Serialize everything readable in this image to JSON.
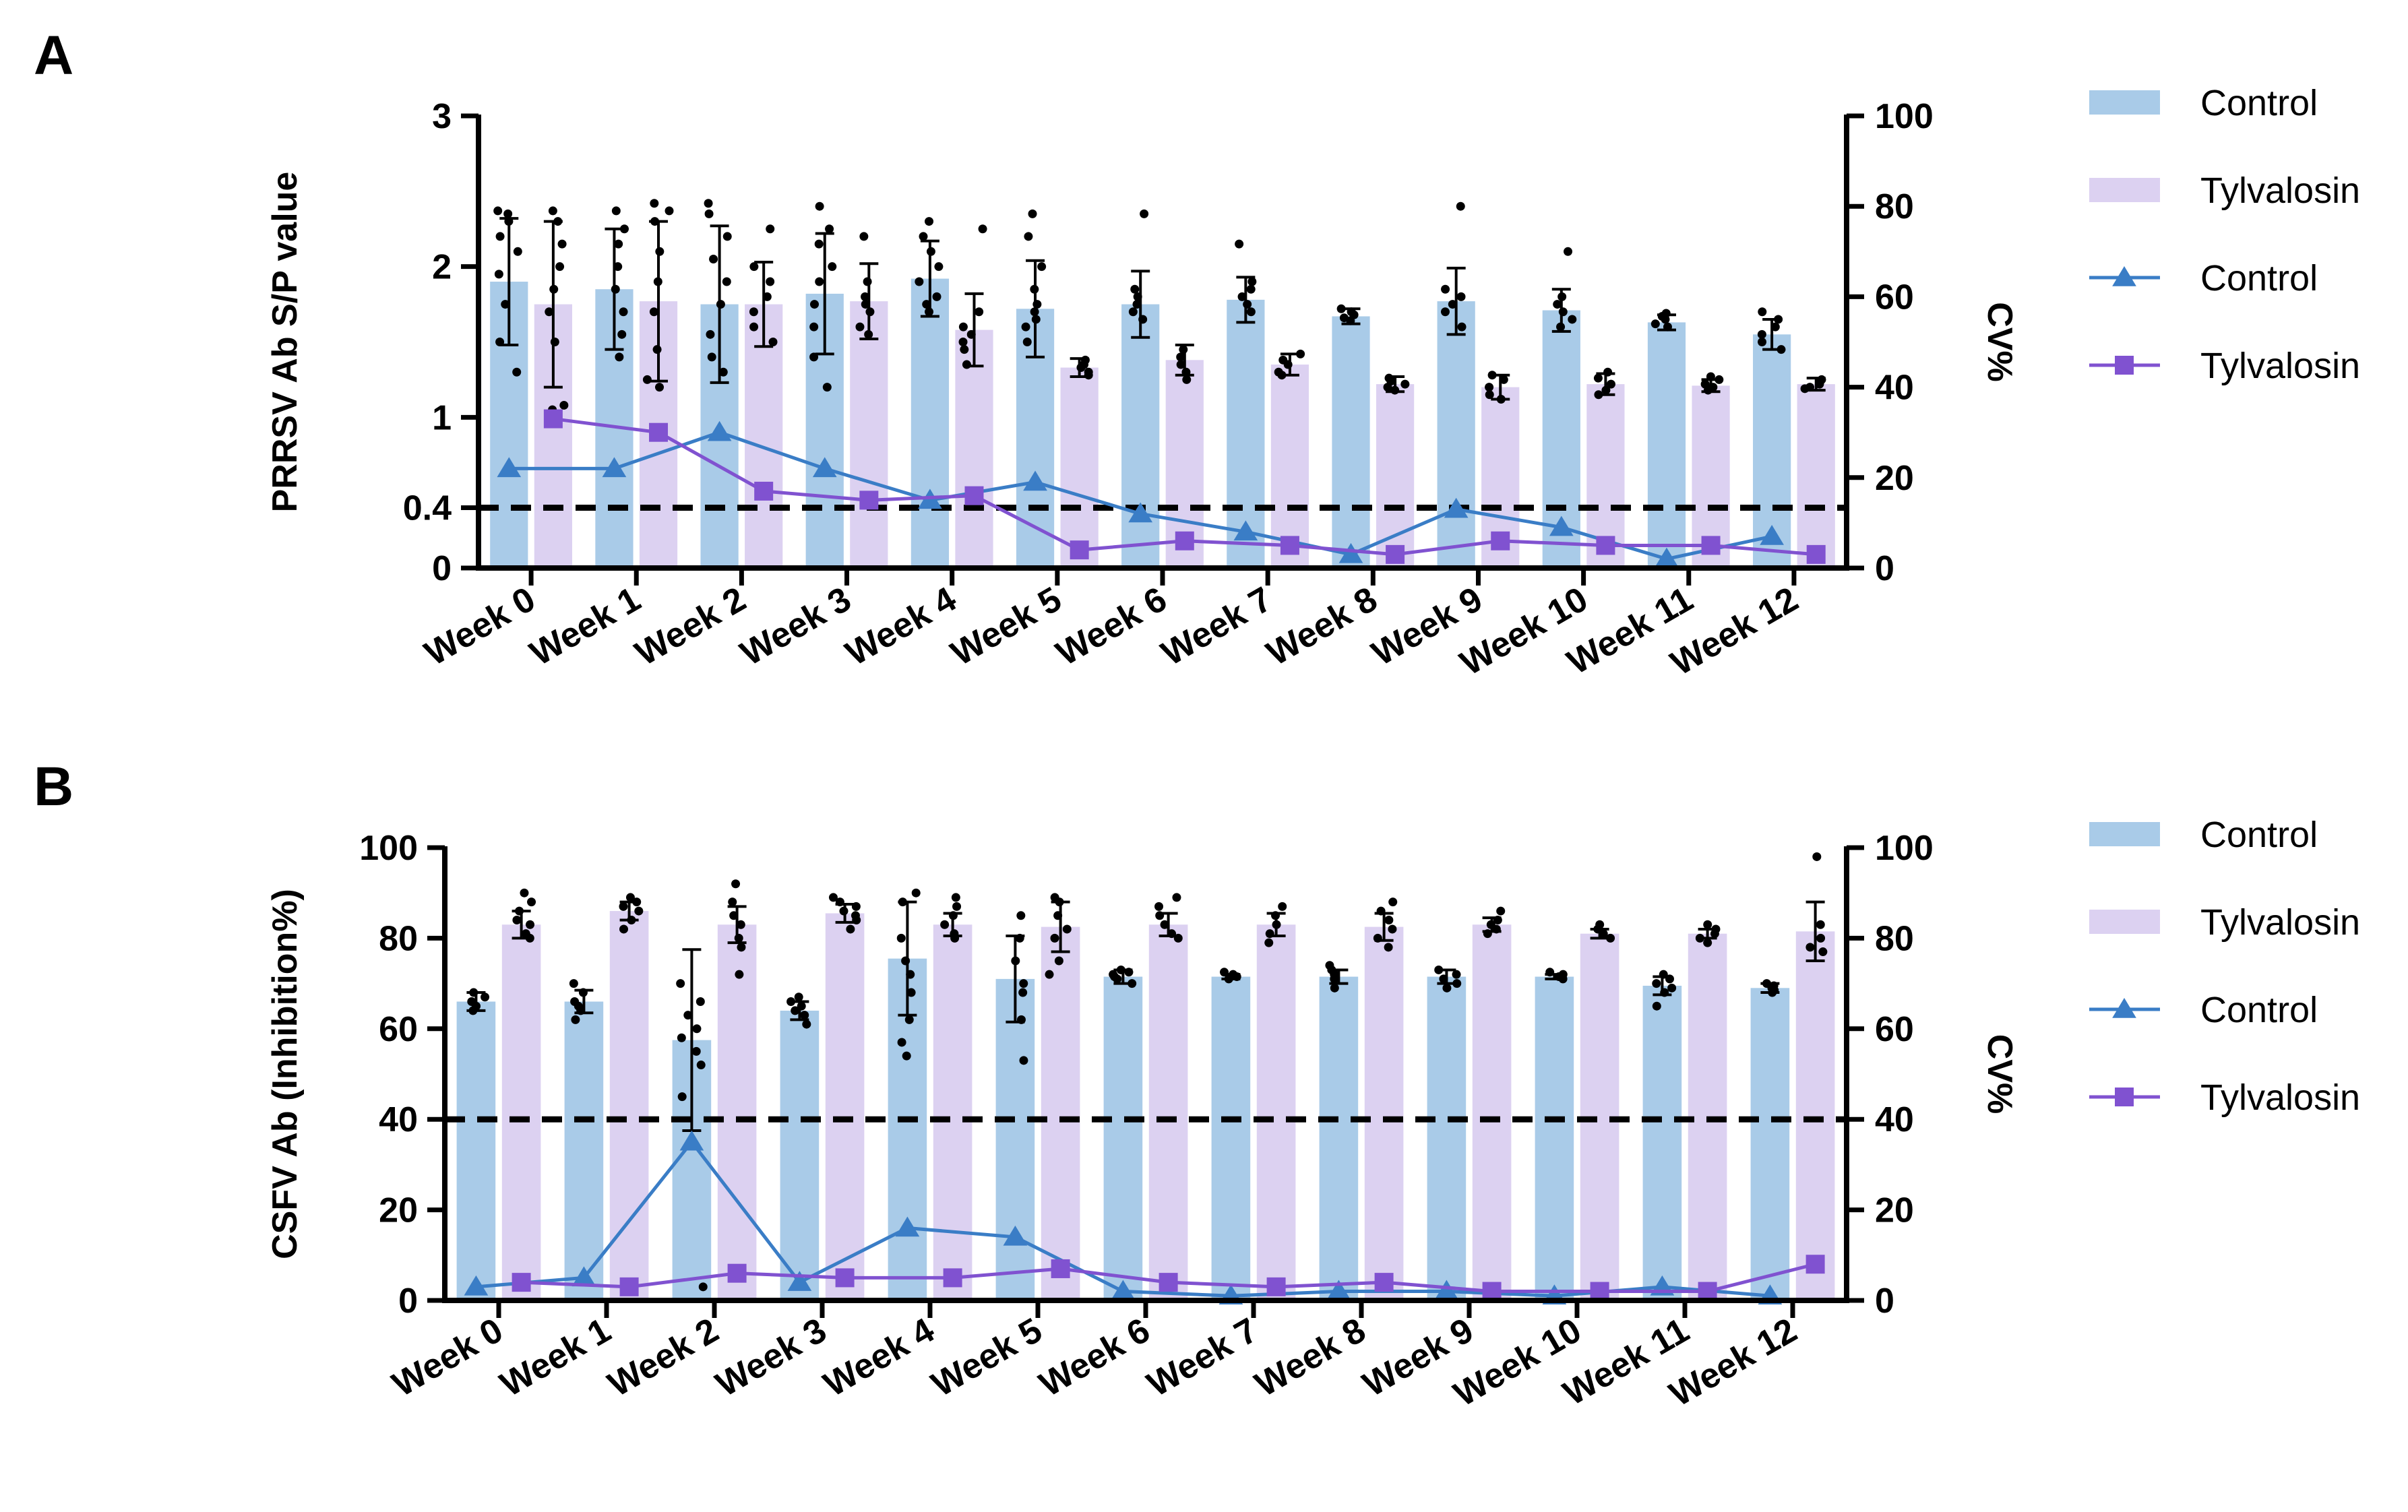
{
  "colors": {
    "control_bar": "#a9cbe8",
    "tylvalosin_bar": "#dcd1f1",
    "control_line": "#3a7dc6",
    "tylvalosin_line": "#8052d0",
    "axis": "#000000"
  },
  "chart_data": [
    {
      "panel": "A",
      "type": "bar",
      "categories": [
        "Week 0",
        "Week 1",
        "Week 2",
        "Week 3",
        "Week 4",
        "Week 5",
        "Week 6",
        "Week 7",
        "Week 8",
        "Week 9",
        "Week 10",
        "Week 11",
        "Week 12"
      ],
      "ylabel": "PRRSV Ab S/P value",
      "y2label": "CV%",
      "ylim": [
        0,
        3
      ],
      "y2lim": [
        0,
        100
      ],
      "yticks": [
        "0",
        "0.4",
        "1",
        "2",
        "3"
      ],
      "ytick_values": [
        0,
        0.4,
        1,
        2,
        3
      ],
      "y2ticks": [
        "0",
        "20",
        "40",
        "60",
        "80",
        "100"
      ],
      "y2tick_values": [
        0,
        20,
        40,
        60,
        80,
        100
      ],
      "threshold": 0.4,
      "series": [
        {
          "name": "Control",
          "kind": "bar",
          "values": [
            1.9,
            1.85,
            1.75,
            1.82,
            1.92,
            1.72,
            1.75,
            1.78,
            1.67,
            1.77,
            1.71,
            1.63,
            1.55
          ],
          "sd": [
            0.42,
            0.4,
            0.52,
            0.4,
            0.25,
            0.32,
            0.22,
            0.15,
            0.05,
            0.22,
            0.14,
            0.05,
            0.1
          ],
          "points": [
            [
              1.3,
              1.5,
              1.75,
              1.95,
              2.1,
              2.2,
              2.3,
              2.35,
              2.37
            ],
            [
              1.4,
              1.55,
              1.7,
              1.85,
              2.0,
              2.15,
              2.25,
              2.37
            ],
            [
              1.3,
              1.4,
              1.55,
              1.75,
              1.9,
              2.05,
              2.2,
              2.35,
              2.42
            ],
            [
              1.2,
              1.4,
              1.6,
              1.75,
              1.9,
              2.0,
              2.15,
              2.25,
              2.4
            ],
            [
              1.7,
              1.75,
              1.8,
              1.9,
              2.0,
              2.1,
              2.2,
              2.3
            ],
            [
              1.5,
              1.6,
              1.65,
              1.7,
              1.75,
              1.85,
              2.0,
              2.2,
              2.35
            ],
            [
              1.65,
              1.7,
              1.75,
              1.8,
              1.85,
              2.35
            ],
            [
              1.7,
              1.75,
              1.8,
              1.85,
              1.9,
              2.15
            ],
            [
              1.64,
              1.66,
              1.68,
              1.7,
              1.72
            ],
            [
              1.6,
              1.7,
              1.75,
              1.8,
              1.85,
              2.4
            ],
            [
              1.6,
              1.65,
              1.7,
              1.75,
              1.8,
              2.1
            ],
            [
              1.6,
              1.62,
              1.65,
              1.67,
              1.69
            ],
            [
              1.45,
              1.5,
              1.55,
              1.6,
              1.65,
              1.7
            ]
          ]
        },
        {
          "name": "Tylvalosin",
          "kind": "bar",
          "values": [
            1.75,
            1.77,
            1.75,
            1.77,
            1.58,
            1.33,
            1.38,
            1.35,
            1.22,
            1.2,
            1.22,
            1.21,
            1.22
          ],
          "sd": [
            0.55,
            0.53,
            0.28,
            0.25,
            0.24,
            0.06,
            0.1,
            0.07,
            0.05,
            0.08,
            0.07,
            0.04,
            0.04
          ],
          "points": [
            [
              1.05,
              1.08,
              1.5,
              1.7,
              1.85,
              2.0,
              2.15,
              2.3,
              2.37
            ],
            [
              1.2,
              1.25,
              1.45,
              1.7,
              1.9,
              2.1,
              2.3,
              2.37,
              2.42
            ],
            [
              1.5,
              1.6,
              1.7,
              1.8,
              1.9,
              2.0,
              2.25
            ],
            [
              1.55,
              1.6,
              1.7,
              1.75,
              1.8,
              1.9,
              2.2
            ],
            [
              1.35,
              1.45,
              1.5,
              1.55,
              1.6,
              1.7,
              2.25
            ],
            [
              1.28,
              1.3,
              1.33,
              1.35,
              1.38
            ],
            [
              1.25,
              1.3,
              1.35,
              1.4,
              1.45
            ],
            [
              1.28,
              1.3,
              1.35,
              1.38,
              1.42
            ],
            [
              1.18,
              1.2,
              1.22,
              1.24,
              1.26
            ],
            [
              1.12,
              1.15,
              1.2,
              1.25,
              1.28
            ],
            [
              1.15,
              1.18,
              1.22,
              1.26,
              1.3
            ],
            [
              1.18,
              1.2,
              1.22,
              1.25,
              1.27
            ],
            [
              1.19,
              1.2,
              1.22,
              1.24,
              1.25
            ]
          ]
        },
        {
          "name": "Control",
          "kind": "line",
          "axis": "y2",
          "marker": "triangle",
          "values": [
            22,
            22,
            30,
            22,
            15,
            19,
            12,
            8,
            3,
            13,
            9,
            2,
            7
          ]
        },
        {
          "name": "Tylvalosin",
          "kind": "line",
          "axis": "y2",
          "marker": "square",
          "values": [
            33,
            30,
            17,
            15,
            16,
            4,
            6,
            5,
            3,
            6,
            5,
            5,
            3
          ]
        }
      ]
    },
    {
      "panel": "B",
      "type": "bar",
      "categories": [
        "Week 0",
        "Week 1",
        "Week 2",
        "Week 3",
        "Week 4",
        "Week 5",
        "Week 6",
        "Week 7",
        "Week 8",
        "Week 9",
        "Week 10",
        "Week 11",
        "Week 12"
      ],
      "ylabel": "CSFV Ab (Inhibition%)",
      "y2label": "CV%",
      "ylim": [
        0,
        100
      ],
      "y2lim": [
        0,
        100
      ],
      "yticks": [
        "0",
        "20",
        "40",
        "60",
        "80",
        "100"
      ],
      "ytick_values": [
        0,
        20,
        40,
        60,
        80,
        100
      ],
      "y2ticks": [
        "0",
        "20",
        "40",
        "60",
        "80",
        "100"
      ],
      "y2tick_values": [
        0,
        20,
        40,
        60,
        80,
        100
      ],
      "threshold": 40,
      "series": [
        {
          "name": "Control",
          "kind": "bar",
          "values": [
            66,
            66,
            57.5,
            64,
            75.5,
            71,
            71.5,
            71.5,
            71.5,
            71.5,
            71.5,
            69.5,
            69
          ],
          "sd": [
            2,
            2.5,
            20,
            2,
            12.5,
            9.5,
            1.5,
            0.5,
            1.5,
            1.5,
            0.5,
            2,
            1
          ],
          "points": [
            [
              64,
              65,
              66,
              67,
              68
            ],
            [
              62,
              64,
              65,
              66,
              68,
              70
            ],
            [
              3,
              45,
              52,
              55,
              58,
              60,
              63,
              66,
              70
            ],
            [
              61,
              63,
              64,
              65,
              66,
              67
            ],
            [
              54,
              57,
              62,
              68,
              72,
              75,
              80,
              88,
              90
            ],
            [
              53,
              62,
              68,
              70,
              75,
              80,
              85
            ],
            [
              70,
              71,
              71.5,
              72,
              72.5,
              73
            ],
            [
              71,
              71.5,
              72,
              72.5
            ],
            [
              69,
              71,
              72,
              73,
              74
            ],
            [
              69,
              70,
              71,
              72,
              73
            ],
            [
              71,
              71.5,
              72,
              72.5
            ],
            [
              65,
              68,
              69,
              70,
              71,
              72
            ],
            [
              68,
              68.5,
              69,
              69.5,
              70
            ]
          ]
        },
        {
          "name": "Tylvalosin",
          "kind": "bar",
          "values": [
            83,
            86,
            83,
            85.5,
            83,
            82.5,
            83,
            83,
            82.5,
            83,
            81,
            81,
            81.5
          ],
          "sd": [
            3,
            2,
            4,
            2,
            2.5,
            5.5,
            2.5,
            2.5,
            3,
            1.5,
            1,
            1,
            6.5
          ],
          "points": [
            [
              80,
              81,
              83,
              84,
              86,
              88,
              90
            ],
            [
              82,
              84,
              86,
              87,
              88,
              89
            ],
            [
              72,
              78,
              80,
              83,
              85,
              88,
              92
            ],
            [
              82,
              84,
              85,
              86,
              87,
              88,
              89
            ],
            [
              80,
              81,
              83,
              85,
              87,
              89
            ],
            [
              72,
              75,
              80,
              82,
              85,
              88,
              89
            ],
            [
              80,
              81,
              83,
              85,
              87,
              89
            ],
            [
              79,
              81,
              83,
              85,
              87
            ],
            [
              78,
              80,
              82,
              84,
              86,
              88
            ],
            [
              81,
              82,
              83,
              84,
              86
            ],
            [
              80,
              81,
              82,
              83
            ],
            [
              79,
              80,
              81,
              82,
              83
            ],
            [
              77,
              78,
              80,
              83,
              98
            ]
          ]
        },
        {
          "name": "Control",
          "kind": "line",
          "axis": "y2",
          "marker": "triangle",
          "values": [
            3,
            5,
            35,
            4,
            16,
            14,
            2,
            1,
            2,
            2,
            1,
            3,
            1
          ]
        },
        {
          "name": "Tylvalosin",
          "kind": "line",
          "axis": "y2",
          "marker": "square",
          "values": [
            4,
            3,
            6,
            5,
            5,
            7,
            4,
            3,
            4,
            2,
            2,
            2,
            8
          ]
        }
      ]
    }
  ],
  "legend": [
    {
      "label": "Control",
      "kind": "bar"
    },
    {
      "label": "Tylvalosin",
      "kind": "bar"
    },
    {
      "label": "Control",
      "kind": "line"
    },
    {
      "label": "Tylvalosin",
      "kind": "line"
    }
  ]
}
